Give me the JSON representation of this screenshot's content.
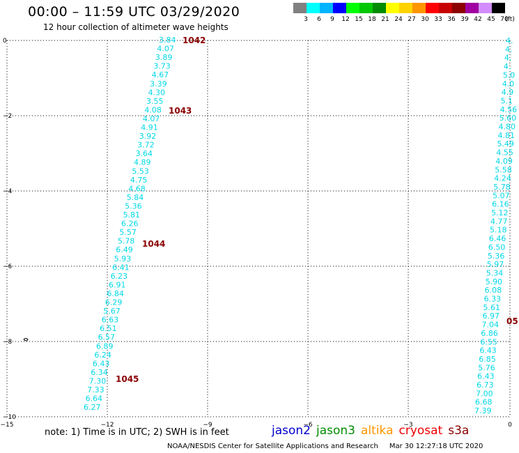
{
  "title": "00:00 – 11:59 UTC 03/29/2020",
  "subtitle": "12 hour collection of altimeter wave heights",
  "legend": {
    "unit": "(ft)",
    "bins": [
      {
        "label": "3",
        "color": "#808080"
      },
      {
        "label": "6",
        "color": "#00ffff"
      },
      {
        "label": "9",
        "color": "#00b4ff"
      },
      {
        "label": "12",
        "color": "#0000ff"
      },
      {
        "label": "15",
        "color": "#00ff00"
      },
      {
        "label": "18",
        "color": "#00c800"
      },
      {
        "label": "21",
        "color": "#008c00"
      },
      {
        "label": "24",
        "color": "#ffff00"
      },
      {
        "label": "27",
        "color": "#ffd200"
      },
      {
        "label": "30",
        "color": "#ff9600"
      },
      {
        "label": "33",
        "color": "#ff0000"
      },
      {
        "label": "36",
        "color": "#c80000"
      },
      {
        "label": "39",
        "color": "#8c0000"
      },
      {
        "label": "42",
        "color": "#a000a0"
      },
      {
        "label": "45",
        "color": "#d28cff"
      },
      {
        "label": "70",
        "color": "#000000"
      }
    ]
  },
  "axes": {
    "x_ticks": [
      "−15",
      "−12",
      "−9",
      "−6",
      "−3",
      "0"
    ],
    "y_ticks": [
      "0",
      "−2",
      "−4",
      "−6",
      "−8",
      "−10"
    ]
  },
  "tracks": [
    {
      "color": "#00d8e8",
      "values": [
        "3.84",
        "4.07",
        "3.89",
        "3.73",
        "4.67",
        "3.39",
        "4.30",
        "3.55",
        "4.08",
        "4.07",
        "4.91",
        "3.92",
        "3.72",
        "3.64",
        "4.89",
        "5.53",
        "4.75",
        "4.68",
        "5.84",
        "5.36",
        "5.81",
        "6.26",
        "5.57",
        "5.78",
        "6.49",
        "5.93",
        "6.41",
        "6.23",
        "6.91",
        "6.84",
        "6.29",
        "5.67",
        "6.63",
        "6.51",
        "6.57",
        "6.89",
        "6.24",
        "6.43",
        "6.34",
        "7.30",
        "7.33",
        "6.64",
        "6.27"
      ]
    },
    {
      "color": "#00d8e8",
      "values": [
        "4.",
        "4.",
        "4.",
        "4.",
        "5.0",
        "4.0",
        "4.9",
        "5.1",
        "4.56",
        "5.60",
        "4.80",
        "4.81",
        "5.49",
        "4.55",
        "4.09",
        "5.58",
        "4.24",
        "5.78",
        "5.07",
        "6.16",
        "5.12",
        "4.77",
        "5.18",
        "6.46",
        "6.50",
        "5.36",
        "5.97",
        "5.34",
        "5.90",
        "6.08",
        "6.33",
        "5.61",
        "6.97",
        "7.04",
        "6.86",
        "6.55",
        "6.43",
        "6.85",
        "5.76",
        "6.43",
        "6.73",
        "7.00",
        "6.68",
        "7.39"
      ]
    }
  ],
  "orbits": [
    {
      "label": "1042",
      "color": "#8b0000"
    },
    {
      "label": "1043",
      "color": "#8b0000"
    },
    {
      "label": "1044",
      "color": "#8b0000"
    },
    {
      "label": "1045",
      "color": "#8b0000"
    },
    {
      "label": "05",
      "color": "#cc0000"
    }
  ],
  "note": "note: 1) Time is in UTC; 2) SWH is in feet",
  "satellites": [
    {
      "name": "jason2",
      "color": "#0000cc"
    },
    {
      "name": "jason3",
      "color": "#008c00"
    },
    {
      "name": "altika",
      "color": "#ff9600"
    },
    {
      "name": "cryosat",
      "color": "#ee0000"
    },
    {
      "name": "s3a",
      "color": "#8b0000"
    }
  ],
  "credit": "NOAA/NESDIS Center for Satellite Applications and Research",
  "timestamp": "Mar 30 12:27:18 UTC 2020"
}
